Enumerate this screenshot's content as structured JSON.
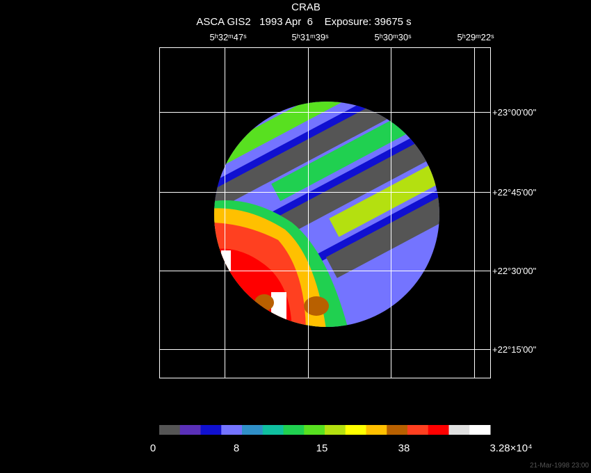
{
  "title": "CRAB",
  "subtitle": "ASCA GIS2   1993 Apr  6    Exposure: 39675 s",
  "ra_labels": [
    "5ʰ32ᵐ47ˢ",
    "5ʰ31ᵐ39ˢ",
    "5ʰ30ᵐ30ˢ",
    "5ʰ29ᵐ22ˢ"
  ],
  "dec_labels": [
    "+23°00'00\"",
    "+22°45'00\"",
    "+22°30'00\"",
    "+22°15'00\""
  ],
  "colorbar": {
    "colors": [
      "#555555",
      "#5a30b8",
      "#1010d0",
      "#7474ff",
      "#3090c8",
      "#10c0a0",
      "#20d050",
      "#58e020",
      "#b4e010",
      "#ffff00",
      "#ffc000",
      "#b86000",
      "#ff4020",
      "#ff0000",
      "#e0e0e0",
      "#ffffff"
    ],
    "labels": [
      "0",
      "8",
      "15",
      "38",
      "3.28×10⁴"
    ]
  },
  "footer": "21-Mar-1998 23:00"
}
